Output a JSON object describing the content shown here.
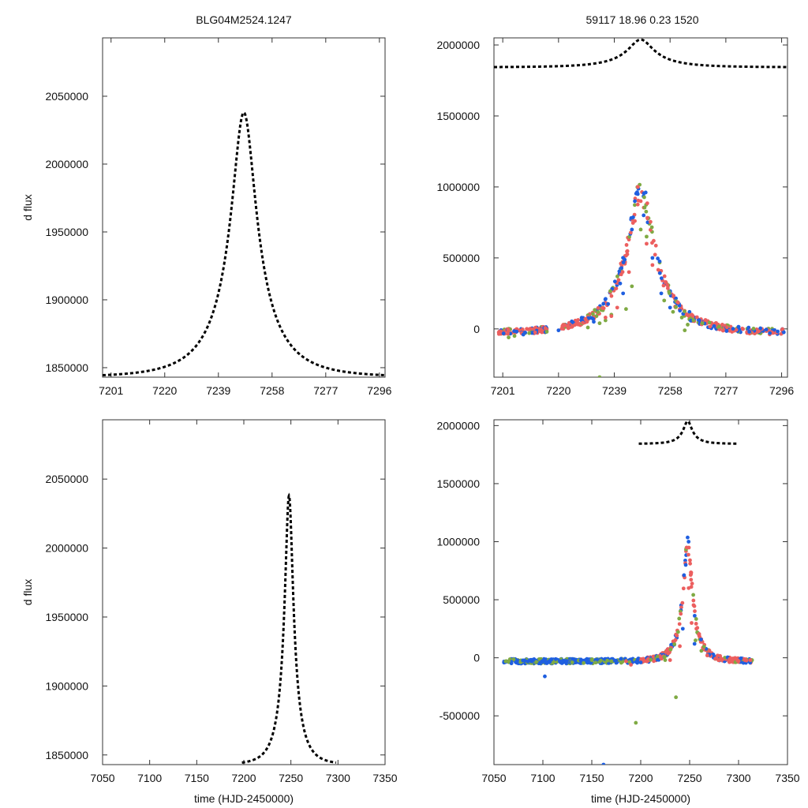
{
  "figure": {
    "title_left": "BLG04M2524.1247",
    "title_right": "59117  18.96  0.23  1520"
  },
  "colors": {
    "model": "#000000",
    "red": "#ec5f5f",
    "blue": "#1f5fe0",
    "green": "#7faa44",
    "axis": "#333333"
  },
  "chart_data": [
    {
      "id": "top-left",
      "type": "line",
      "xlim": [
        7198,
        7298
      ],
      "ylim": [
        1843000,
        2093000
      ],
      "xticks": [
        7201,
        7220,
        7239,
        7258,
        7277,
        7296
      ],
      "yticks": [
        1850000,
        1900000,
        1950000,
        2000000,
        2050000
      ],
      "xlabel": "",
      "ylabel": "d flux",
      "model": {
        "t0": 7248.0,
        "u0": 0.23,
        "tE": 18.96,
        "base": 1843000,
        "peak": 2038000,
        "xrange": [
          7198,
          7298
        ]
      },
      "points": []
    },
    {
      "id": "top-right",
      "type": "scatter",
      "xlim": [
        7198,
        7298
      ],
      "ylim": [
        -340000,
        2050000
      ],
      "xticks": [
        7201,
        7220,
        7239,
        7258,
        7277,
        7296
      ],
      "yticks": [
        0,
        500000,
        1000000,
        1500000,
        2000000
      ],
      "xlabel": "",
      "ylabel": "",
      "model": {
        "t0": 7248.0,
        "u0": 0.23,
        "tE": 18.96,
        "base": 1843000,
        "peak": 2038000,
        "xrange": [
          7198,
          7298
        ]
      },
      "points": [
        [
          7210,
          -30000,
          "g"
        ],
        [
          7205,
          -50000,
          "g"
        ],
        [
          7203,
          -60000,
          "g"
        ],
        [
          7216,
          -20000,
          "g"
        ],
        [
          7230,
          10000,
          "g"
        ],
        [
          7234,
          40000,
          "g"
        ],
        [
          7236,
          60000,
          "g"
        ],
        [
          7238,
          100000,
          "g"
        ],
        [
          7243,
          140000,
          "g"
        ],
        [
          7245,
          300000,
          "g"
        ],
        [
          7248,
          700000,
          "g"
        ],
        [
          7250,
          650000,
          "g"
        ],
        [
          7256,
          200000,
          "g"
        ],
        [
          7259,
          120000,
          "g"
        ],
        [
          7262,
          80000,
          "g"
        ],
        [
          7264,
          30000,
          "g"
        ],
        [
          7266,
          60000,
          "g"
        ],
        [
          7269,
          40000,
          "g"
        ],
        [
          7263,
          -10000,
          "g"
        ],
        [
          7234,
          -340000,
          "g"
        ],
        [
          7245,
          700000,
          "b"
        ],
        [
          7246,
          900000,
          "b"
        ],
        [
          7247,
          950000,
          "b"
        ],
        [
          7249,
          800000,
          "b"
        ],
        [
          7252,
          500000,
          "b"
        ],
        [
          7241,
          320000,
          "b"
        ],
        [
          7242,
          250000,
          "b"
        ],
        [
          7255,
          250000,
          "b"
        ],
        [
          7258,
          150000,
          "b"
        ],
        [
          7268,
          60000,
          "b"
        ],
        [
          7273,
          20000,
          "b"
        ],
        [
          7285,
          -20000,
          "b"
        ],
        [
          7292,
          -30000,
          "b"
        ],
        [
          7208,
          -40000,
          "b"
        ],
        [
          7220,
          -10000,
          "b"
        ],
        [
          7232,
          50000,
          "b"
        ],
        [
          7247,
          1000000,
          "r"
        ],
        [
          7248,
          900000,
          "r"
        ],
        [
          7250,
          600000,
          "r"
        ],
        [
          7252,
          450000,
          "r"
        ],
        [
          7244,
          400000,
          "r"
        ],
        [
          7246,
          760000,
          "r"
        ],
        [
          7240,
          150000,
          "r"
        ],
        [
          7238,
          90000,
          "r"
        ],
        [
          7236,
          80000,
          "r"
        ]
      ]
    },
    {
      "id": "bottom-left",
      "type": "line",
      "xlim": [
        7050,
        7350
      ],
      "ylim": [
        1843000,
        2093000
      ],
      "xticks": [
        7050,
        7100,
        7150,
        7200,
        7250,
        7300,
        7350
      ],
      "yticks": [
        1850000,
        1900000,
        1950000,
        2000000,
        2050000
      ],
      "xlabel": "time (HJD-2450000)",
      "ylabel": "d flux",
      "model": {
        "t0": 7248.0,
        "u0": 0.23,
        "tE": 18.96,
        "base": 1843000,
        "peak": 2038000,
        "xrange": [
          7198,
          7298
        ]
      },
      "points": []
    },
    {
      "id": "bottom-right",
      "type": "scatter",
      "xlim": [
        7050,
        7350
      ],
      "ylim": [
        -920000,
        2050000
      ],
      "xticks": [
        7050,
        7100,
        7150,
        7200,
        7250,
        7300,
        7350
      ],
      "yticks": [
        -500000,
        0,
        500000,
        1000000,
        1500000,
        2000000
      ],
      "xlabel": "time (HJD-2450000)",
      "ylabel": "",
      "model": {
        "t0": 7248.0,
        "u0": 0.23,
        "tE": 18.96,
        "base": 1843000,
        "peak": 2038000,
        "xrange": [
          7198,
          7298
        ]
      },
      "points": [
        [
          7102,
          -160000,
          "b"
        ],
        [
          7162,
          -920000,
          "b"
        ],
        [
          7195,
          -560000,
          "g"
        ],
        [
          7236,
          -340000,
          "g"
        ],
        [
          7062,
          -30000,
          "g"
        ],
        [
          7065,
          -30000,
          "g"
        ],
        [
          7130,
          -40000,
          "g"
        ],
        [
          7150,
          -20000,
          "g"
        ],
        [
          7170,
          -30000,
          "g"
        ],
        [
          7185,
          -30000,
          "r"
        ],
        [
          7190,
          -60000,
          "r"
        ],
        [
          7200,
          -40000,
          "b"
        ],
        [
          7230,
          -20000,
          "r"
        ],
        [
          7240,
          100000,
          "r"
        ],
        [
          7243,
          250000,
          "b"
        ],
        [
          7246,
          800000,
          "b"
        ],
        [
          7247,
          950000,
          "r"
        ],
        [
          7249,
          600000,
          "r"
        ],
        [
          7252,
          300000,
          "r"
        ],
        [
          7256,
          150000,
          "g"
        ],
        [
          7262,
          60000,
          "g"
        ],
        [
          7268,
          20000,
          "r"
        ],
        [
          7280,
          -20000,
          "r"
        ],
        [
          7300,
          -30000,
          "r"
        ],
        [
          7312,
          -20000,
          "r"
        ],
        [
          7225,
          -20000,
          "g"
        ],
        [
          7255,
          120000,
          "b"
        ]
      ]
    }
  ]
}
